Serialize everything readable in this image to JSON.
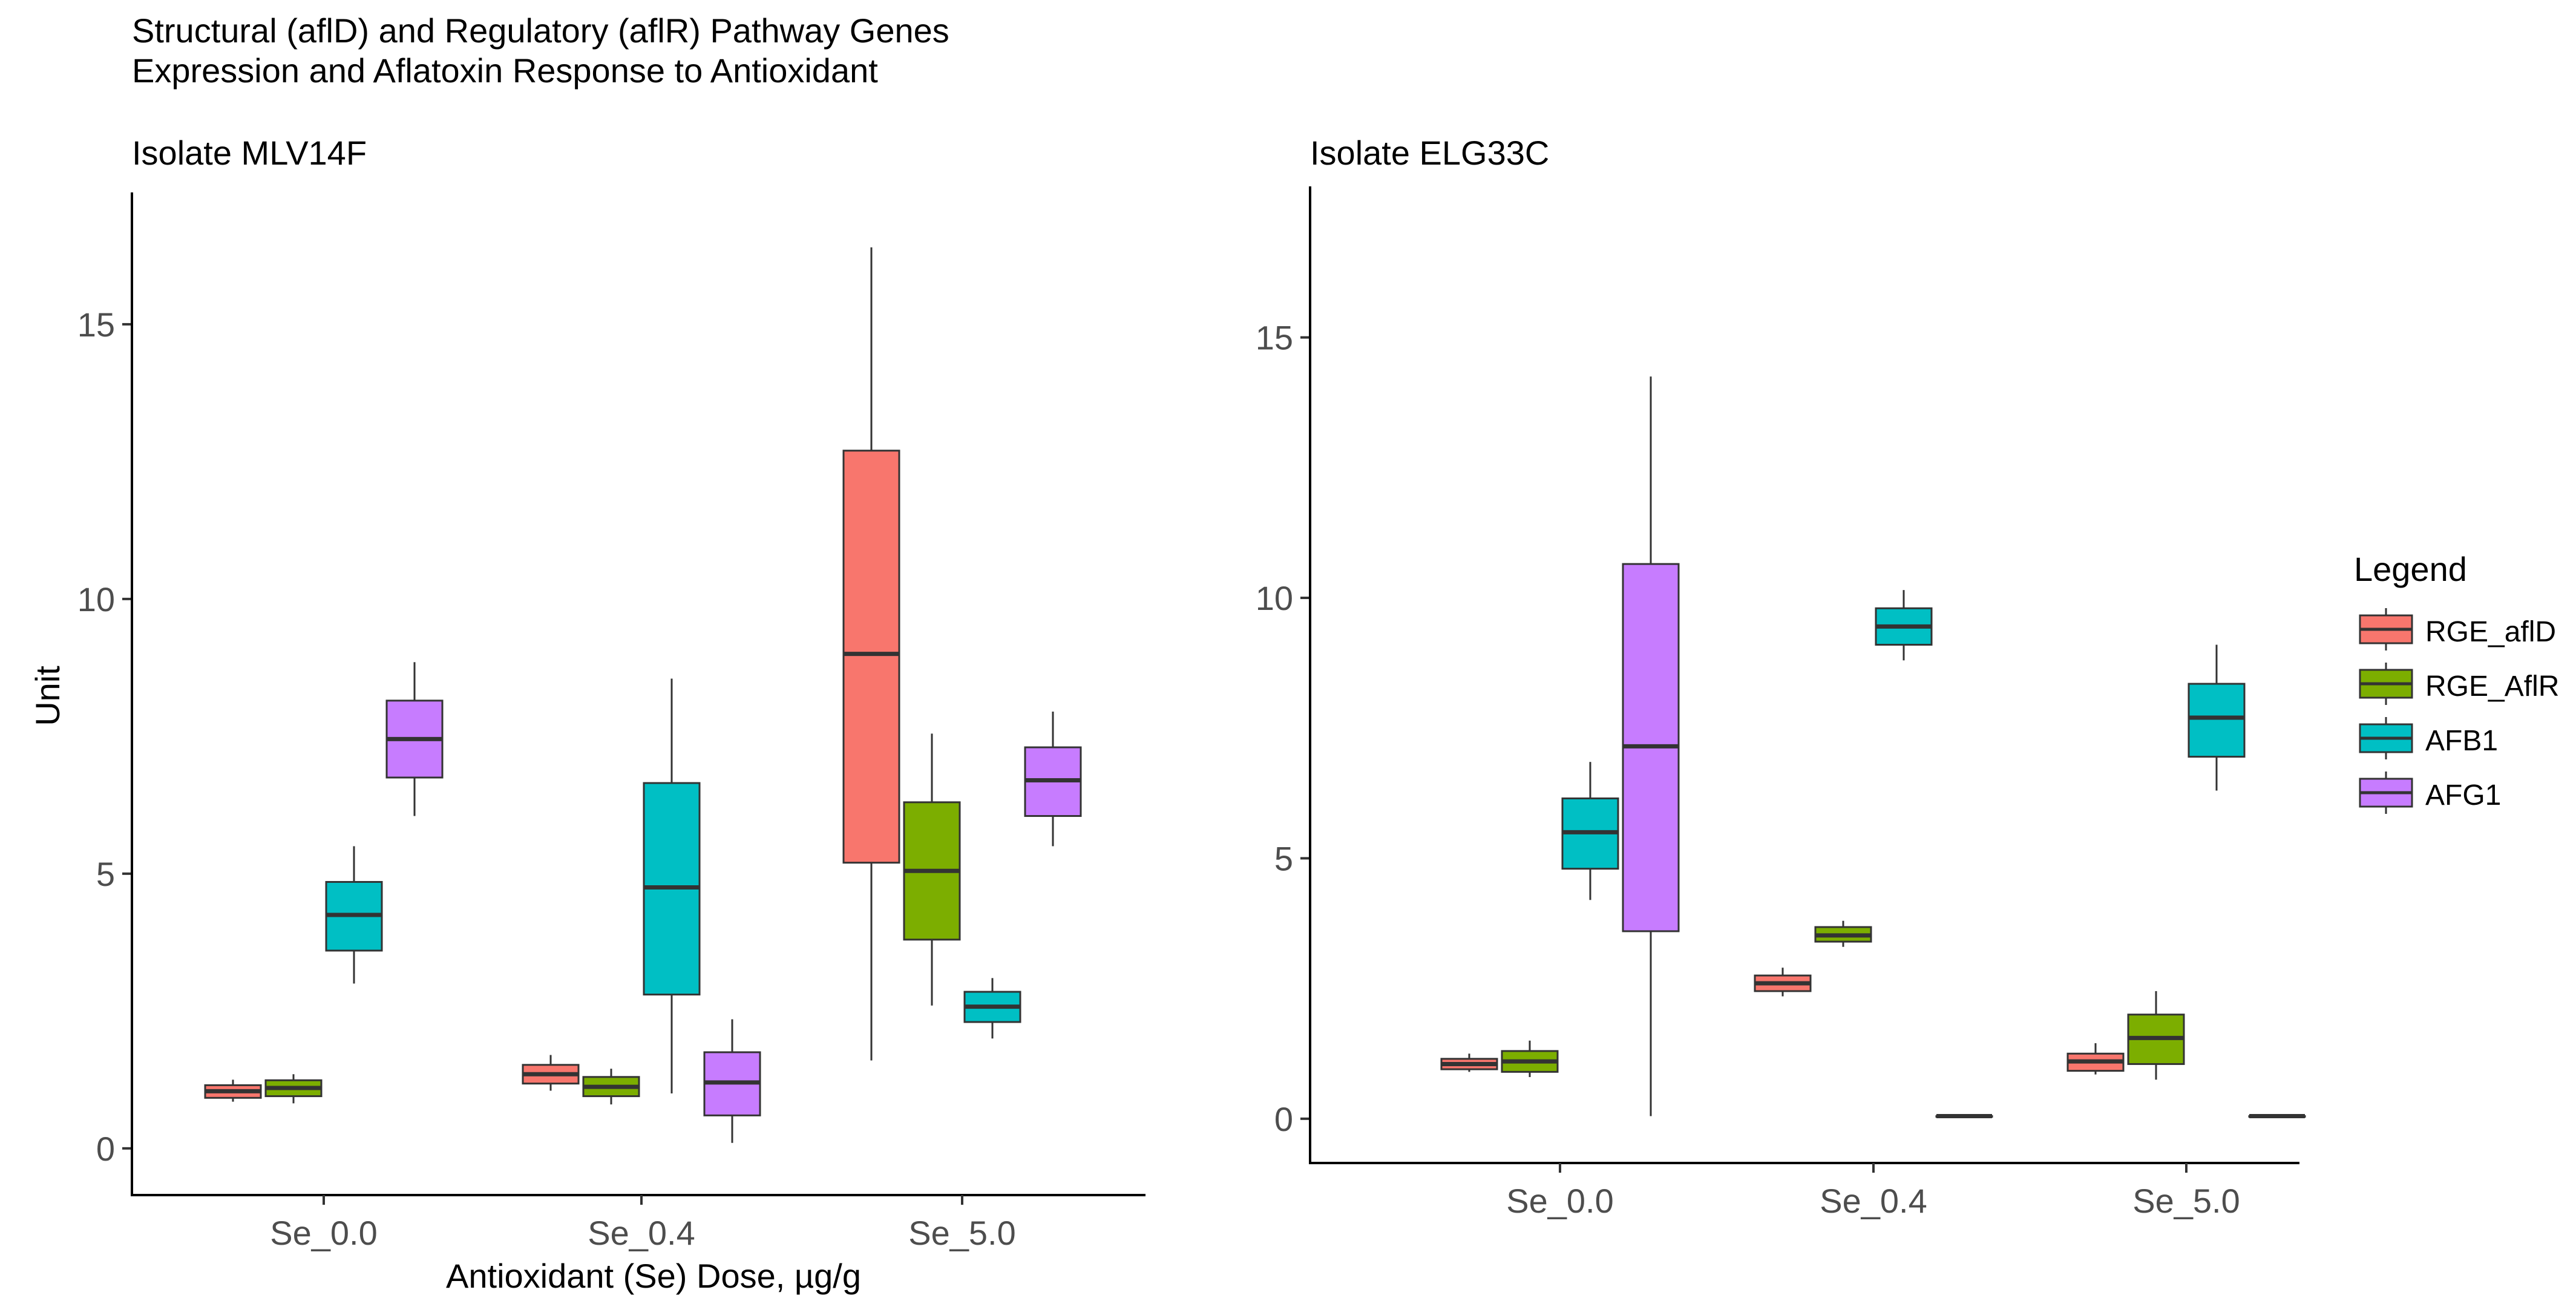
{
  "figure_title_line1": "Structural (aflD) and Regulatory (aflR) Pathway Genes",
  "figure_title_line2": "Expression and Aflatoxin Response to Antioxidant",
  "legend": {
    "title": "Legend",
    "entries": [
      {
        "name": "RGE_aflD",
        "color": "#F8766D"
      },
      {
        "name": "RGE_AflR",
        "color": "#7CAE00"
      },
      {
        "name": "AFB1",
        "color": "#00BFC4"
      },
      {
        "name": "AFG1",
        "color": "#C77CFF"
      }
    ]
  },
  "chart_data": [
    {
      "type": "box",
      "subtitle": "Isolate MLV14F",
      "xlabel": "Antioxidant (Se) Dose, µg/g",
      "ylabel": "Unit",
      "categories": [
        "Se_0.0",
        "Se_0.4",
        "Se_5.0"
      ],
      "yticks": [
        0,
        5,
        10,
        15
      ],
      "ylim": [
        -0.85,
        17.4
      ],
      "series": [
        {
          "name": "RGE_aflD",
          "boxes": [
            {
              "min": 0.85,
              "q1": 0.92,
              "median": 1.04,
              "q3": 1.15,
              "max": 1.25
            },
            {
              "min": 1.05,
              "q1": 1.18,
              "median": 1.35,
              "q3": 1.52,
              "max": 1.7
            },
            {
              "min": 1.6,
              "q1": 5.2,
              "median": 9.0,
              "q3": 12.7,
              "max": 16.4
            }
          ]
        },
        {
          "name": "RGE_AflR",
          "boxes": [
            {
              "min": 0.82,
              "q1": 0.95,
              "median": 1.1,
              "q3": 1.24,
              "max": 1.35
            },
            {
              "min": 0.8,
              "q1": 0.95,
              "median": 1.12,
              "q3": 1.3,
              "max": 1.45
            },
            {
              "min": 2.6,
              "q1": 3.8,
              "median": 5.05,
              "q3": 6.3,
              "max": 7.55
            }
          ]
        },
        {
          "name": "AFB1",
          "boxes": [
            {
              "min": 3.0,
              "q1": 3.6,
              "median": 4.25,
              "q3": 4.85,
              "max": 5.5
            },
            {
              "min": 1.0,
              "q1": 2.8,
              "median": 4.75,
              "q3": 6.65,
              "max": 8.55
            },
            {
              "min": 2.0,
              "q1": 2.3,
              "median": 2.58,
              "q3": 2.85,
              "max": 3.1
            }
          ]
        },
        {
          "name": "AFG1",
          "boxes": [
            {
              "min": 6.05,
              "q1": 6.75,
              "median": 7.45,
              "q3": 8.15,
              "max": 8.85
            },
            {
              "min": 0.1,
              "q1": 0.6,
              "median": 1.2,
              "q3": 1.75,
              "max": 2.35
            },
            {
              "min": 5.5,
              "q1": 6.05,
              "median": 6.7,
              "q3": 7.3,
              "max": 7.95
            }
          ]
        }
      ]
    },
    {
      "type": "box",
      "subtitle": "Isolate ELG33C",
      "xlabel": "",
      "ylabel": "",
      "categories": [
        "Se_0.0",
        "Se_0.4",
        "Se_5.0"
      ],
      "yticks": [
        0,
        5,
        10,
        15
      ],
      "ylim": [
        -0.85,
        17.9
      ],
      "series": [
        {
          "name": "RGE_aflD",
          "boxes": [
            {
              "min": 0.9,
              "q1": 0.95,
              "median": 1.05,
              "q3": 1.15,
              "max": 1.25
            },
            {
              "min": 2.35,
              "q1": 2.45,
              "median": 2.6,
              "q3": 2.75,
              "max": 2.9
            },
            {
              "min": 0.85,
              "q1": 0.92,
              "median": 1.1,
              "q3": 1.25,
              "max": 1.45
            }
          ]
        },
        {
          "name": "RGE_AflR",
          "boxes": [
            {
              "min": 0.8,
              "q1": 0.9,
              "median": 1.1,
              "q3": 1.3,
              "max": 1.5
            },
            {
              "min": 3.3,
              "q1": 3.4,
              "median": 3.52,
              "q3": 3.68,
              "max": 3.8
            },
            {
              "min": 0.75,
              "q1": 1.05,
              "median": 1.55,
              "q3": 2.0,
              "max": 2.45
            }
          ]
        },
        {
          "name": "AFB1",
          "boxes": [
            {
              "min": 4.2,
              "q1": 4.8,
              "median": 5.5,
              "q3": 6.15,
              "max": 6.85
            },
            {
              "min": 8.8,
              "q1": 9.1,
              "median": 9.45,
              "q3": 9.8,
              "max": 10.15
            },
            {
              "min": 6.3,
              "q1": 6.95,
              "median": 7.7,
              "q3": 8.35,
              "max": 9.1
            }
          ]
        },
        {
          "name": "AFG1",
          "boxes": [
            {
              "min": 0.05,
              "q1": 3.6,
              "median": 7.15,
              "q3": 10.65,
              "max": 14.25
            },
            {
              "min": 0.05,
              "q1": 0.05,
              "median": 0.05,
              "q3": 0.05,
              "max": 0.05
            },
            {
              "min": 0.05,
              "q1": 0.05,
              "median": 0.05,
              "q3": 0.05,
              "max": 0.05
            }
          ]
        }
      ]
    }
  ]
}
